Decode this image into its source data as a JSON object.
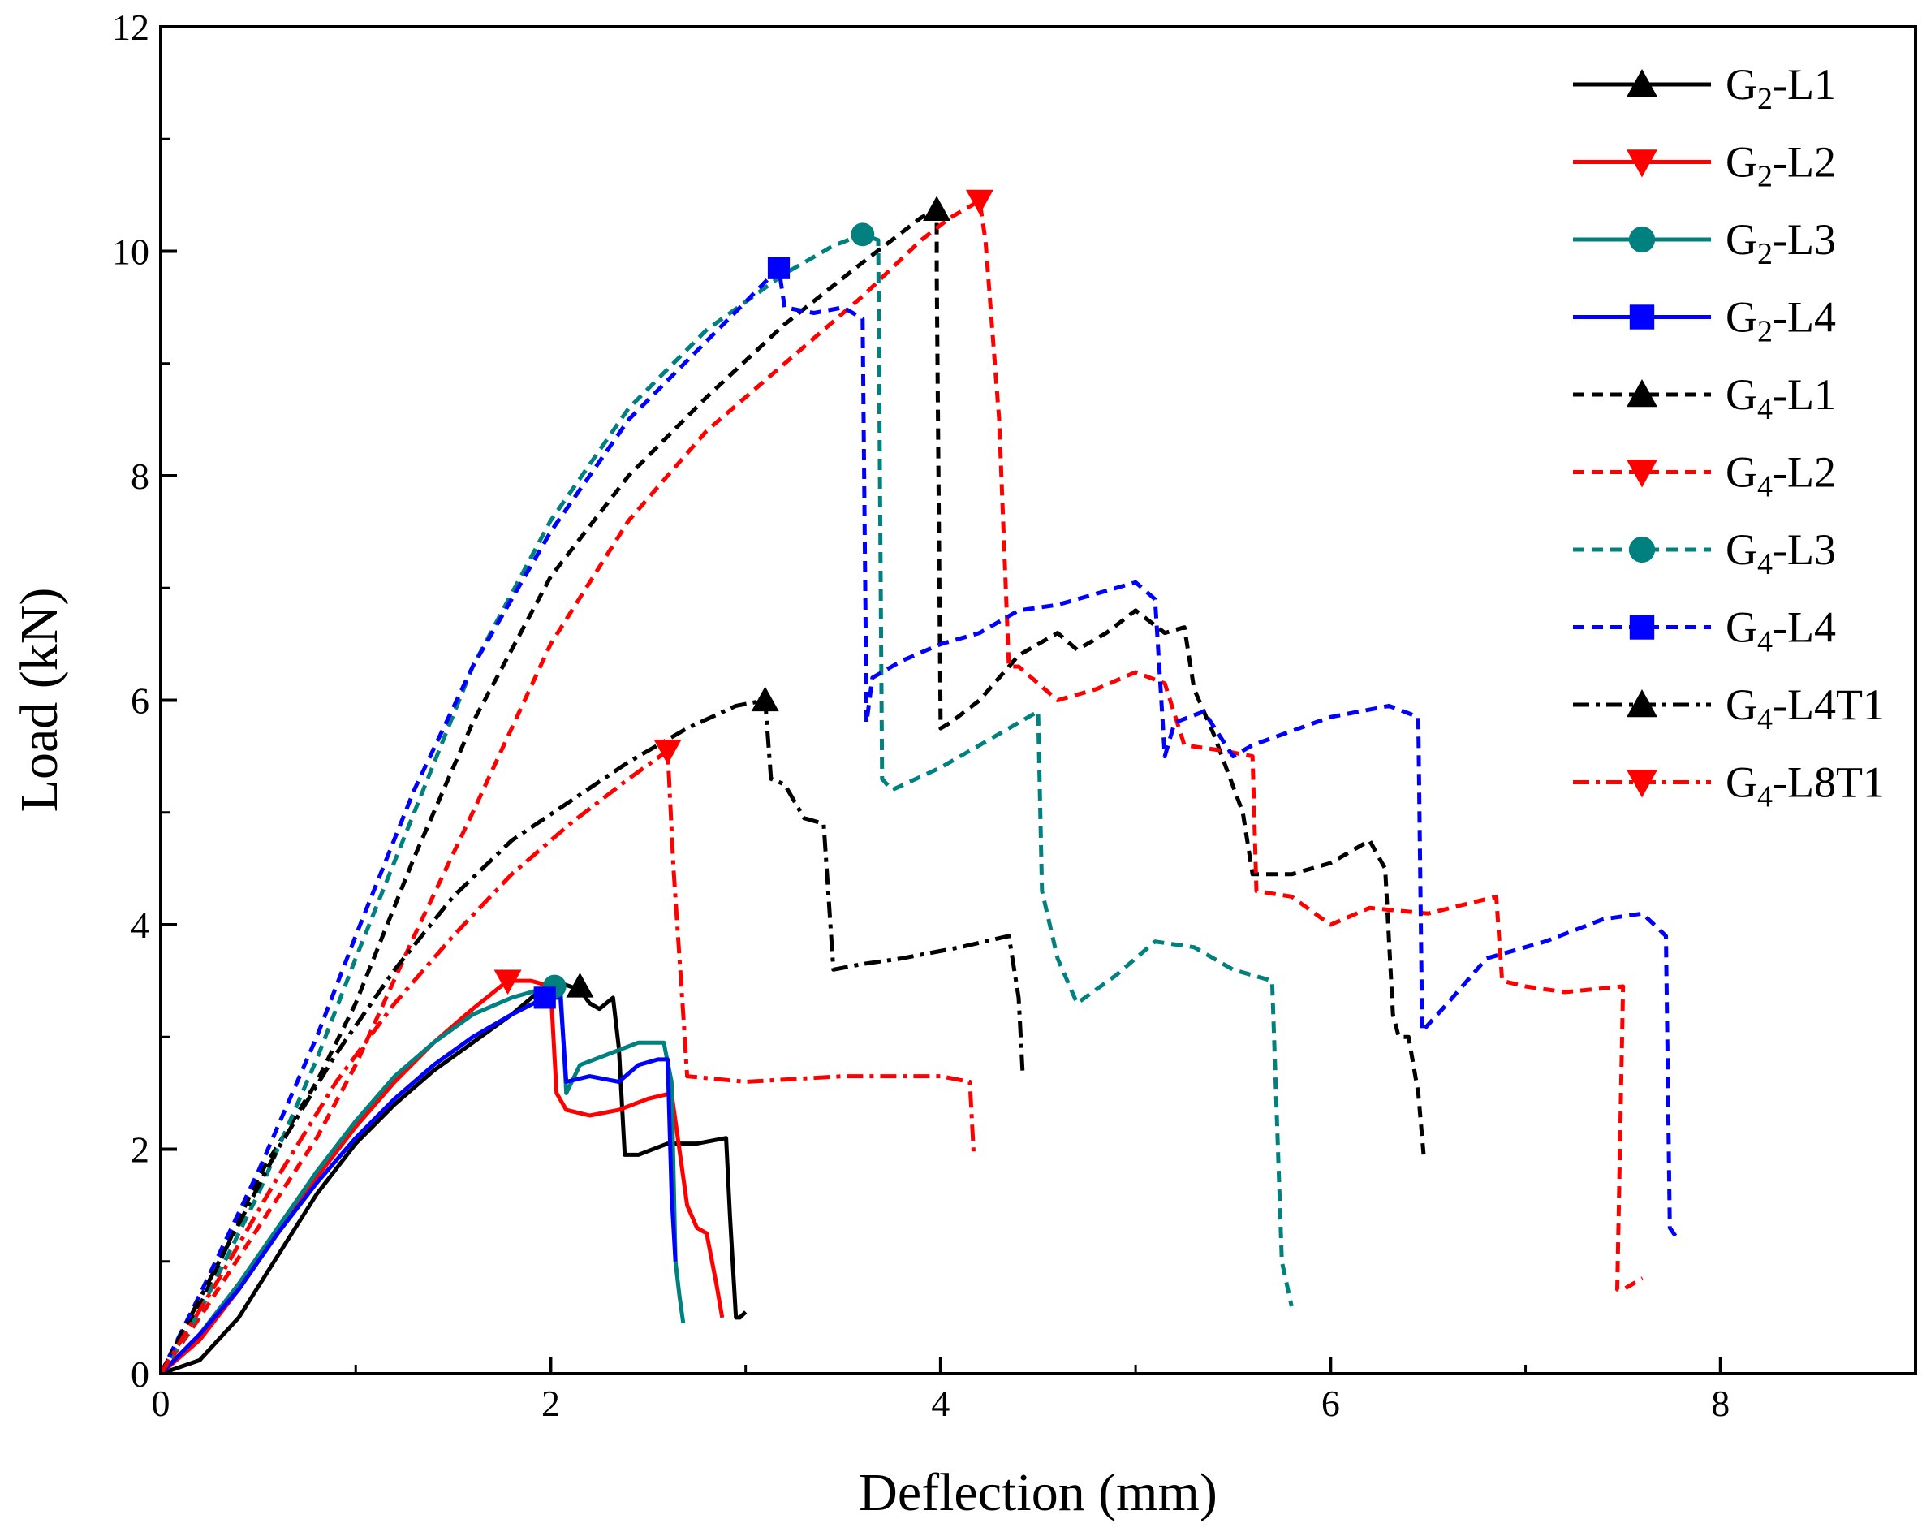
{
  "chart_data": {
    "type": "line",
    "title": "",
    "xlabel": "Deflection (mm)",
    "ylabel": "Load (kN)",
    "xlim": [
      0,
      9
    ],
    "ylim": [
      0,
      12
    ],
    "xticks": [
      0,
      2,
      4,
      6,
      8
    ],
    "yticks": [
      0,
      2,
      4,
      6,
      8,
      10,
      12
    ],
    "grid": false,
    "legend_position": "top-right",
    "series": [
      {
        "name": "G2-L1",
        "label": {
          "base": "G",
          "sub": "2",
          "suffix": "-L1"
        },
        "color": "#000000",
        "dash": "solid",
        "marker": "triangle-up",
        "marker_point": [
          2.15,
          3.45
        ],
        "x": [
          0,
          0.2,
          0.4,
          0.6,
          0.8,
          1.0,
          1.2,
          1.4,
          1.6,
          1.8,
          1.95,
          2.05,
          2.1,
          2.15,
          2.2,
          2.25,
          2.32,
          2.35,
          2.38,
          2.45,
          2.6,
          2.75,
          2.9,
          2.92,
          2.95,
          2.97,
          3.0
        ],
        "y": [
          0,
          0.12,
          0.5,
          1.05,
          1.6,
          2.05,
          2.4,
          2.7,
          2.95,
          3.2,
          3.42,
          3.48,
          3.45,
          3.42,
          3.3,
          3.25,
          3.35,
          2.9,
          1.95,
          1.95,
          2.05,
          2.05,
          2.1,
          1.4,
          0.5,
          0.5,
          0.55
        ]
      },
      {
        "name": "G2-L2",
        "label": {
          "base": "G",
          "sub": "2",
          "suffix": "-L2"
        },
        "color": "#ff0000",
        "dash": "solid",
        "marker": "triangle-down",
        "marker_point": [
          1.78,
          3.5
        ],
        "x": [
          0,
          0.2,
          0.4,
          0.6,
          0.8,
          1.0,
          1.2,
          1.4,
          1.6,
          1.78,
          1.9,
          2.0,
          2.03,
          2.08,
          2.2,
          2.35,
          2.5,
          2.62,
          2.66,
          2.7,
          2.75,
          2.8,
          2.85,
          2.88
        ],
        "y": [
          0,
          0.3,
          0.75,
          1.25,
          1.75,
          2.2,
          2.6,
          2.95,
          3.25,
          3.5,
          3.5,
          3.45,
          2.5,
          2.35,
          2.3,
          2.35,
          2.45,
          2.5,
          2.0,
          1.5,
          1.3,
          1.25,
          0.8,
          0.5
        ]
      },
      {
        "name": "G2-L3",
        "label": {
          "base": "G",
          "sub": "2",
          "suffix": "-L3"
        },
        "color": "#00807f",
        "dash": "solid",
        "marker": "circle",
        "marker_point": [
          2.02,
          3.45
        ],
        "x": [
          0,
          0.2,
          0.4,
          0.6,
          0.8,
          1.0,
          1.2,
          1.4,
          1.6,
          1.8,
          2.0,
          2.05,
          2.08,
          2.15,
          2.3,
          2.45,
          2.58,
          2.62,
          2.64,
          2.66,
          2.68
        ],
        "y": [
          0,
          0.35,
          0.8,
          1.3,
          1.8,
          2.25,
          2.65,
          2.95,
          3.2,
          3.35,
          3.45,
          3.45,
          2.5,
          2.75,
          2.85,
          2.95,
          2.95,
          2.6,
          1.0,
          0.7,
          0.45
        ]
      },
      {
        "name": "G2-L4",
        "label": {
          "base": "G",
          "sub": "2",
          "suffix": "-L4"
        },
        "color": "#0000ff",
        "dash": "solid",
        "marker": "square",
        "marker_point": [
          1.97,
          3.35
        ],
        "x": [
          0,
          0.2,
          0.4,
          0.6,
          0.8,
          1.0,
          1.2,
          1.4,
          1.6,
          1.8,
          1.97,
          2.05,
          2.08,
          2.2,
          2.35,
          2.45,
          2.55,
          2.6,
          2.62,
          2.64
        ],
        "y": [
          0,
          0.35,
          0.75,
          1.25,
          1.7,
          2.1,
          2.45,
          2.75,
          3.0,
          3.2,
          3.35,
          3.35,
          2.6,
          2.65,
          2.6,
          2.75,
          2.8,
          2.8,
          1.6,
          1.0
        ]
      },
      {
        "name": "G4-L1",
        "label": {
          "base": "G",
          "sub": "4",
          "suffix": "-L1"
        },
        "color": "#000000",
        "dash": "dashed",
        "marker": "triangle-up",
        "marker_point": [
          3.98,
          10.37
        ],
        "x": [
          0,
          0.2,
          0.5,
          0.8,
          1.0,
          1.3,
          1.6,
          2.0,
          2.4,
          2.8,
          3.2,
          3.6,
          3.9,
          3.98,
          3.98,
          4.0,
          4.05,
          4.2,
          4.4,
          4.6,
          4.7,
          4.85,
          5.0,
          5.15,
          5.25,
          5.3,
          5.4,
          5.55,
          5.6,
          5.8,
          6.0,
          6.2,
          6.28,
          6.32,
          6.35,
          6.4,
          6.45,
          6.48
        ],
        "y": [
          0,
          0.6,
          1.75,
          2.6,
          3.3,
          4.6,
          5.8,
          7.1,
          8.0,
          8.7,
          9.35,
          9.9,
          10.3,
          10.37,
          9.8,
          5.75,
          5.8,
          6.0,
          6.4,
          6.6,
          6.45,
          6.6,
          6.8,
          6.6,
          6.65,
          6.1,
          5.7,
          5.0,
          4.45,
          4.45,
          4.55,
          4.75,
          4.5,
          3.2,
          3.0,
          3.0,
          2.5,
          1.9
        ]
      },
      {
        "name": "G4-L2",
        "label": {
          "base": "G",
          "sub": "4",
          "suffix": "-L2"
        },
        "color": "#ff0000",
        "dash": "dashed",
        "marker": "triangle-down",
        "marker_point": [
          4.2,
          10.45
        ],
        "x": [
          0,
          0.2,
          0.5,
          0.8,
          1.0,
          1.3,
          1.6,
          2.0,
          2.4,
          2.8,
          3.2,
          3.6,
          3.9,
          4.05,
          4.2,
          4.23,
          4.3,
          4.35,
          4.4,
          4.6,
          4.8,
          5.0,
          5.15,
          5.25,
          5.45,
          5.6,
          5.62,
          5.8,
          6.0,
          6.2,
          6.5,
          6.85,
          6.88,
          7.0,
          7.2,
          7.5,
          7.47,
          7.5,
          7.6
        ],
        "y": [
          0,
          0.5,
          1.3,
          2.1,
          2.75,
          3.9,
          5.0,
          6.5,
          7.6,
          8.4,
          9.0,
          9.6,
          10.1,
          10.3,
          10.45,
          10.1,
          8.5,
          6.3,
          6.3,
          6.0,
          6.1,
          6.25,
          6.15,
          5.6,
          5.55,
          5.5,
          4.3,
          4.25,
          4.0,
          4.15,
          4.1,
          4.25,
          3.5,
          3.45,
          3.4,
          3.45,
          0.75,
          0.75,
          0.85
        ]
      },
      {
        "name": "G4-L3",
        "label": {
          "base": "G",
          "sub": "4",
          "suffix": "-L3"
        },
        "color": "#00807f",
        "dash": "dashed",
        "marker": "circle",
        "marker_point": [
          3.6,
          10.15
        ],
        "x": [
          0,
          0.2,
          0.5,
          0.8,
          1.0,
          1.3,
          1.6,
          2.0,
          2.4,
          2.8,
          3.2,
          3.45,
          3.6,
          3.68,
          3.7,
          3.75,
          4.0,
          4.3,
          4.5,
          4.52,
          4.6,
          4.7,
          4.9,
          5.1,
          5.3,
          5.5,
          5.7,
          5.75,
          5.8
        ],
        "y": [
          0,
          0.55,
          1.6,
          2.8,
          3.7,
          5.0,
          6.3,
          7.6,
          8.6,
          9.3,
          9.8,
          10.05,
          10.15,
          10.1,
          5.3,
          5.2,
          5.4,
          5.7,
          5.9,
          4.3,
          3.7,
          3.3,
          3.55,
          3.85,
          3.8,
          3.6,
          3.5,
          1.0,
          0.6
        ]
      },
      {
        "name": "G4-L4",
        "label": {
          "base": "G",
          "sub": "4",
          "suffix": "-L4"
        },
        "color": "#0000ff",
        "dash": "dashed",
        "marker": "square",
        "marker_point": [
          3.17,
          9.85
        ],
        "x": [
          0,
          0.2,
          0.5,
          0.8,
          1.0,
          1.3,
          1.6,
          2.0,
          2.4,
          2.8,
          3.0,
          3.17,
          3.2,
          3.35,
          3.5,
          3.6,
          3.62,
          3.65,
          3.8,
          4.0,
          4.2,
          4.4,
          4.6,
          4.8,
          5.0,
          5.1,
          5.15,
          5.2,
          5.35,
          5.5,
          5.6,
          6.0,
          6.3,
          6.45,
          6.47,
          6.6,
          6.8,
          7.1,
          7.4,
          7.6,
          7.72,
          7.74,
          7.78
        ],
        "y": [
          0,
          0.7,
          1.8,
          3.0,
          3.9,
          5.2,
          6.3,
          7.5,
          8.5,
          9.2,
          9.55,
          9.85,
          9.5,
          9.45,
          9.5,
          9.4,
          5.8,
          6.2,
          6.35,
          6.5,
          6.6,
          6.8,
          6.85,
          6.95,
          7.05,
          6.9,
          5.5,
          5.8,
          5.9,
          5.5,
          5.6,
          5.85,
          5.95,
          5.85,
          3.05,
          3.3,
          3.7,
          3.85,
          4.05,
          4.1,
          3.9,
          1.3,
          1.2
        ]
      },
      {
        "name": "G4-L4T1",
        "label": {
          "base": "G",
          "sub": "4",
          "suffix": "-L4T1"
        },
        "color": "#000000",
        "dash": "dashdot",
        "marker": "triangle-up",
        "marker_point": [
          3.1,
          6.0
        ],
        "x": [
          0,
          0.3,
          0.6,
          0.9,
          1.2,
          1.5,
          1.8,
          2.1,
          2.4,
          2.7,
          2.95,
          3.1,
          3.13,
          3.2,
          3.3,
          3.4,
          3.45,
          3.6,
          3.8,
          4.1,
          4.35,
          4.4,
          4.42
        ],
        "y": [
          0,
          1.0,
          2.0,
          2.85,
          3.6,
          4.25,
          4.75,
          5.1,
          5.45,
          5.75,
          5.95,
          6.0,
          5.3,
          5.25,
          4.95,
          4.9,
          3.6,
          3.65,
          3.7,
          3.8,
          3.9,
          3.35,
          2.7
        ]
      },
      {
        "name": "G4-L8T1",
        "label": {
          "base": "G",
          "sub": "4",
          "suffix": "-L8T1"
        },
        "color": "#ff0000",
        "dash": "dashdot",
        "marker": "triangle-down",
        "marker_point": [
          2.6,
          5.55
        ],
        "x": [
          0,
          0.3,
          0.6,
          0.9,
          1.2,
          1.5,
          1.8,
          2.1,
          2.4,
          2.6,
          2.63,
          2.68,
          2.7,
          3.0,
          3.5,
          4.0,
          4.15,
          4.17
        ],
        "y": [
          0,
          0.85,
          1.75,
          2.6,
          3.3,
          3.9,
          4.45,
          4.9,
          5.3,
          5.55,
          4.5,
          3.2,
          2.65,
          2.6,
          2.65,
          2.65,
          2.6,
          1.95
        ]
      }
    ]
  }
}
